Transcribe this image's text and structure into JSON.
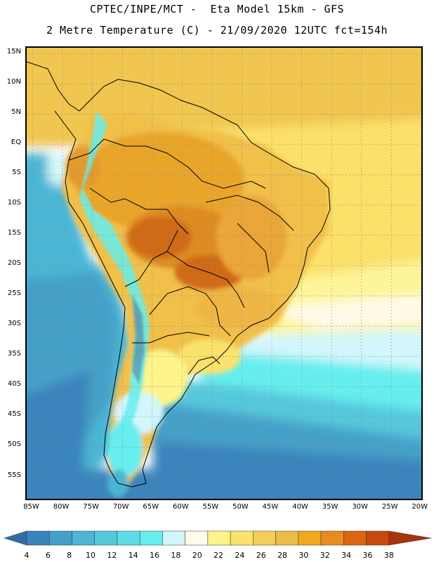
{
  "header": {
    "title_line1": "CPTEC/INPE/MCT -  Eta Model 15km - GFS",
    "title_line2": "2 Metre Temperature (C) - 21/09/2020 12UTC fct=154h"
  },
  "map": {
    "lat_labels": [
      "15N",
      "10N",
      "5N",
      "EQ",
      "5S",
      "10S",
      "15S",
      "20S",
      "25S",
      "30S",
      "35S",
      "40S",
      "45S",
      "50S",
      "55S"
    ],
    "lon_labels": [
      "85W",
      "80W",
      "75W",
      "70W",
      "65W",
      "60W",
      "55W",
      "50W",
      "45W",
      "40W",
      "35W",
      "30W",
      "25W",
      "20W"
    ],
    "lat_range": [
      16,
      -59
    ],
    "lon_range": [
      -86,
      -19.5
    ],
    "gridlines": "dotted"
  },
  "legend": {
    "levels": [
      "4",
      "6",
      "8",
      "10",
      "12",
      "14",
      "16",
      "18",
      "20",
      "22",
      "24",
      "26",
      "28",
      "30",
      "32",
      "34",
      "36",
      "38"
    ],
    "colors": [
      "#2f6ea8",
      "#3a84bc",
      "#44a0c8",
      "#4cb6d4",
      "#56c8dc",
      "#5edde6",
      "#66eeee",
      "#d2f6fb",
      "#fffaea",
      "#fdf48a",
      "#fbe26c",
      "#f4ce58",
      "#ecbc48",
      "#f2a81a",
      "#e98b1e",
      "#dd6412",
      "#c74a0c",
      "#a8340a"
    ]
  },
  "chart_data": {
    "type": "heatmap",
    "title": "2 Metre Temperature (C)",
    "model": "Eta Model 15km - GFS",
    "date": "21/09/2020 12UTC",
    "forecast_hour": "fct=154h",
    "units": "C",
    "color_levels": [
      4,
      6,
      8,
      10,
      12,
      14,
      16,
      18,
      20,
      22,
      24,
      26,
      28,
      30,
      32,
      34,
      36,
      38
    ],
    "xlabel": "",
    "ylabel": ""
  }
}
